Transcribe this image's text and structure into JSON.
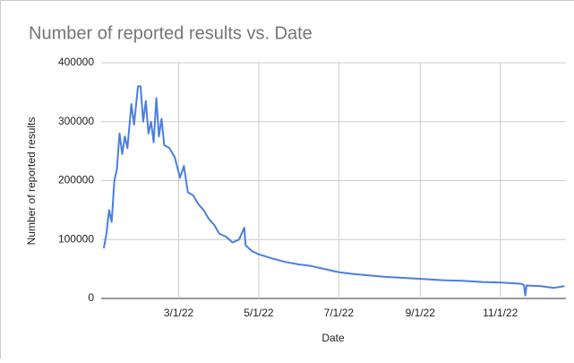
{
  "chart_data": {
    "type": "line",
    "title": "Number of reported results vs. Date",
    "x_label": "Date",
    "y_label": "Number of reported results",
    "x": [
      "1/3/22",
      "1/5/22",
      "1/7/22",
      "1/9/22",
      "1/11/22",
      "1/13/22",
      "1/15/22",
      "1/17/22",
      "1/19/22",
      "1/21/22",
      "1/24/22",
      "1/26/22",
      "1/29/22",
      "1/31/22",
      "2/2/22",
      "2/4/22",
      "2/6/22",
      "2/8/22",
      "2/10/22",
      "2/12/22",
      "2/14/22",
      "2/16/22",
      "2/18/22",
      "2/22/22",
      "2/26/22",
      "3/2/22",
      "3/5/22",
      "3/8/22",
      "3/12/22",
      "3/16/22",
      "3/20/22",
      "3/24/22",
      "3/28/22",
      "4/1/22",
      "4/6/22",
      "4/11/22",
      "4/16/22",
      "4/20/22",
      "4/21/22",
      "4/26/22",
      "5/1/22",
      "5/11/22",
      "5/21/22",
      "5/31/22",
      "6/10/22",
      "6/20/22",
      "6/30/22",
      "7/10/22",
      "7/20/22",
      "8/4/22",
      "8/19/22",
      "9/3/22",
      "9/18/22",
      "10/3/22",
      "10/18/22",
      "11/2/22",
      "11/17/22",
      "11/19/22",
      "11/20/22",
      "11/21/22",
      "12/2/22",
      "12/12/22",
      "12/20/22"
    ],
    "series": [
      {
        "name": "Number of reported results",
        "color": "#4a7fe0",
        "values": [
          85000,
          110000,
          150000,
          130000,
          200000,
          220000,
          280000,
          245000,
          275000,
          255000,
          330000,
          295000,
          360000,
          360000,
          300000,
          335000,
          280000,
          300000,
          265000,
          340000,
          275000,
          305000,
          260000,
          255000,
          240000,
          205000,
          225000,
          180000,
          175000,
          160000,
          150000,
          135000,
          125000,
          110000,
          105000,
          95000,
          100000,
          120000,
          90000,
          80000,
          75000,
          68000,
          62000,
          58000,
          55000,
          50000,
          45000,
          42000,
          40000,
          37000,
          35000,
          33000,
          31000,
          30000,
          28000,
          27000,
          25000,
          23000,
          5000,
          22000,
          21000,
          18000,
          21000
        ]
      }
    ],
    "xlim": [
      "1/1/22",
      "12/21/22"
    ],
    "xticks": [
      "3/1/22",
      "5/1/22",
      "7/1/22",
      "9/1/22",
      "11/1/22"
    ],
    "ylim": [
      0,
      400000
    ],
    "yticks": [
      0,
      100000,
      200000,
      300000,
      400000
    ],
    "grid": true
  }
}
